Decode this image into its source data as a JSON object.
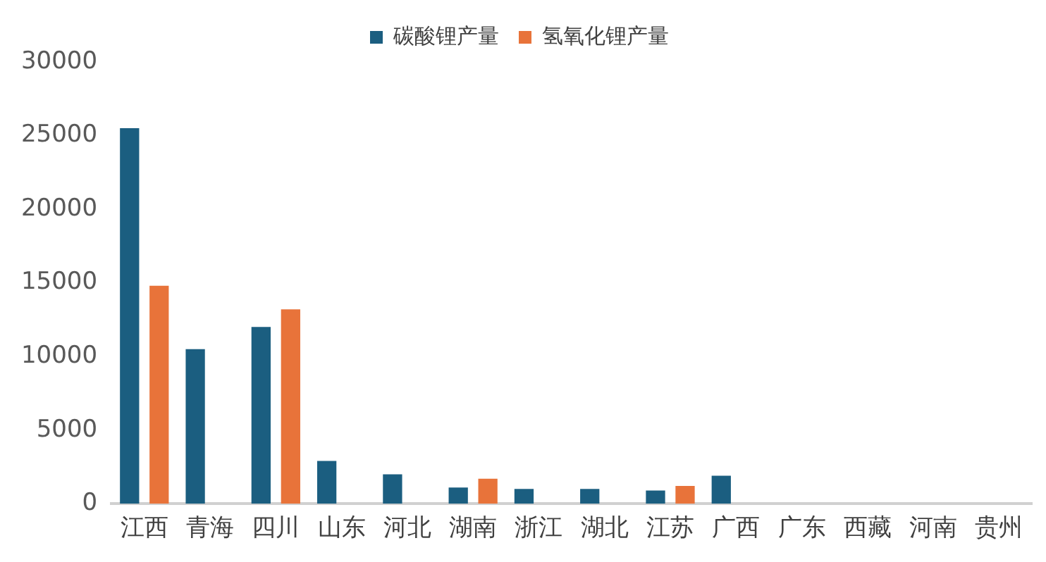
{
  "chart_data": {
    "type": "bar",
    "categories": [
      "江西",
      "青海",
      "四川",
      "山东",
      "河北",
      "湖南",
      "浙江",
      "湖北",
      "江苏",
      "广西",
      "广东",
      "西藏",
      "河南",
      "贵州"
    ],
    "series": [
      {
        "name": "碳酸锂产量",
        "color": "#1b5e80",
        "values": [
          25500,
          10500,
          12000,
          2900,
          2000,
          1100,
          1000,
          1000,
          900,
          1900,
          0,
          0,
          0,
          0
        ]
      },
      {
        "name": "氢氧化锂产量",
        "color": "#e8733a",
        "values": [
          14800,
          null,
          13200,
          null,
          null,
          1700,
          null,
          null,
          1200,
          null,
          null,
          null,
          null,
          null
        ]
      }
    ],
    "ylim": [
      0,
      30000
    ],
    "yticks": [
      0,
      5000,
      10000,
      15000,
      20000,
      25000,
      30000
    ],
    "grid": false,
    "legend": "top"
  }
}
